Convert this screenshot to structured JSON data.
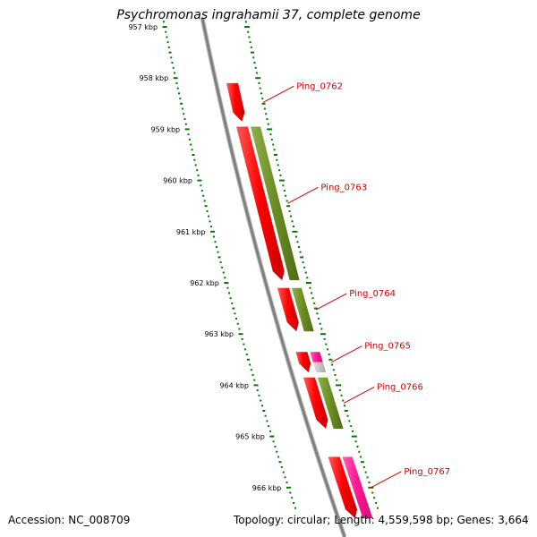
{
  "title": "Psychromonas ingrahamii 37, complete genome",
  "footer": {
    "accession_label": "Accession: NC_008709",
    "topology_label": "Topology: circular; Length: 4,559,598 bp; Genes: 3,664"
  },
  "ruler": {
    "unit": "kbp",
    "ticks": [
      "957 kbp",
      "958 kbp",
      "959 kbp",
      "960 kbp",
      "961 kbp",
      "962 kbp",
      "963 kbp",
      "964 kbp",
      "965 kbp",
      "966 kbp"
    ]
  },
  "genes": [
    {
      "name": "Ping_0762",
      "start_kbp": 958.1,
      "end_kbp": 958.85,
      "strand": "reverse",
      "color": "#ff0000"
    },
    {
      "name": "Ping_0763",
      "start_kbp": 958.95,
      "end_kbp": 961.95,
      "strand": "reverse",
      "color": "#ff0000"
    },
    {
      "name": "Ping_0764",
      "start_kbp": 962.1,
      "end_kbp": 962.95,
      "strand": "reverse",
      "color": "#ff0000"
    },
    {
      "name": "Ping_0765",
      "start_kbp": 963.35,
      "end_kbp": 963.75,
      "strand": "reverse",
      "color": "#ff0000"
    },
    {
      "name": "Ping_0766",
      "start_kbp": 963.85,
      "end_kbp": 964.85,
      "strand": "reverse",
      "color": "#ff0000"
    },
    {
      "name": "Ping_0767",
      "start_kbp": 965.4,
      "end_kbp": 966.6,
      "strand": "reverse",
      "color": "#ff0000"
    }
  ],
  "features": [
    {
      "start_kbp": 958.95,
      "end_kbp": 961.95,
      "color": "#6b8e23"
    },
    {
      "start_kbp": 962.1,
      "end_kbp": 962.95,
      "color": "#6b8e23"
    },
    {
      "start_kbp": 963.35,
      "end_kbp": 963.55,
      "color": "#ff1493"
    },
    {
      "start_kbp": 963.55,
      "end_kbp": 963.75,
      "color": "#c0c0c0"
    },
    {
      "start_kbp": 963.85,
      "end_kbp": 964.85,
      "color": "#6b8e23"
    },
    {
      "start_kbp": 965.4,
      "end_kbp": 966.6,
      "color": "#ff1493"
    }
  ],
  "colors": {
    "backbone": "#808080",
    "ruler": "#007700",
    "label": "#cc0000"
  }
}
